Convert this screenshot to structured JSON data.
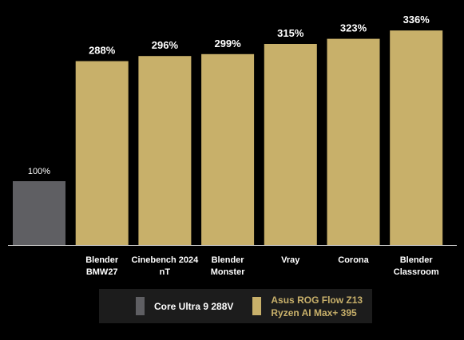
{
  "chart_data": {
    "type": "bar",
    "categories": [
      "",
      "Blender\nBMW27",
      "Cinebench 2024\nnT",
      "Blender\nMonster",
      "Vray",
      "Corona",
      "Blender\nClassroom"
    ],
    "series": [
      {
        "name": "Core Ultra 9 288V",
        "color": "#5f5f63",
        "values": [
          100,
          null,
          null,
          null,
          null,
          null,
          null
        ]
      },
      {
        "name": "Asus ROG Flow Z13 Ryzen AI Max+ 395",
        "color": "#c8b06a",
        "values": [
          null,
          288,
          296,
          299,
          315,
          323,
          336
        ]
      }
    ],
    "data_labels": [
      "100%",
      "288%",
      "296%",
      "299%",
      "315%",
      "323%",
      "336%"
    ],
    "ylim": [
      0,
      340
    ],
    "unit": "%",
    "grid": false,
    "legend_position": "bottom"
  },
  "legend": {
    "items": [
      {
        "label": "Core Ultra 9 288V",
        "color": "#5f5f63"
      },
      {
        "label": "Asus ROG Flow Z13\nRyzen AI Max+ 395",
        "color": "#c8b06a"
      }
    ]
  }
}
